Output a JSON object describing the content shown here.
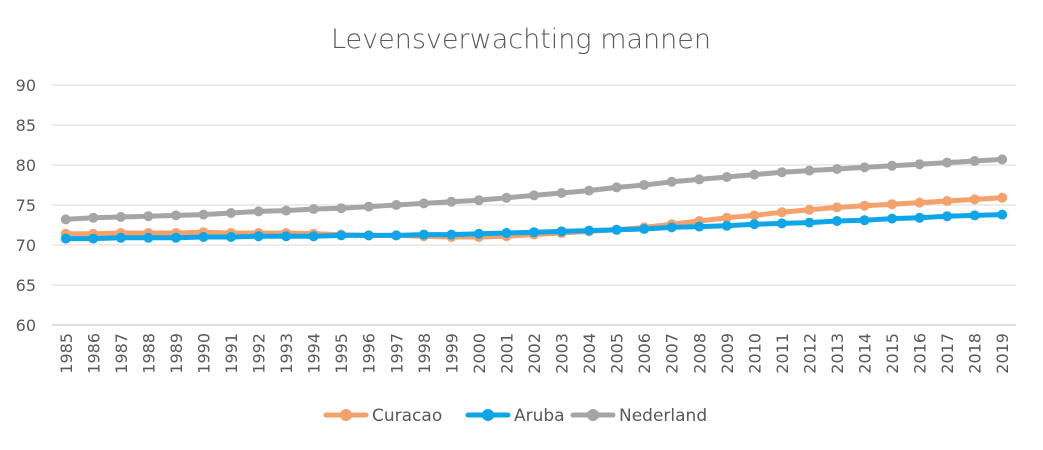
{
  "chart_data": {
    "type": "line",
    "title": "Levensverwachting mannen",
    "xlabel": "",
    "ylabel": "",
    "ylim": [
      60,
      90
    ],
    "yticks": [
      60,
      65,
      70,
      75,
      80,
      85,
      90
    ],
    "grid": true,
    "legend_position": "bottom",
    "categories": [
      "1985",
      "1986",
      "1987",
      "1988",
      "1989",
      "1990",
      "1991",
      "1992",
      "1993",
      "1994",
      "1995",
      "1996",
      "1997",
      "1998",
      "1999",
      "2000",
      "2001",
      "2002",
      "2003",
      "2004",
      "2005",
      "2006",
      "2007",
      "2008",
      "2009",
      "2010",
      "2011",
      "2012",
      "2013",
      "2014",
      "2015",
      "2016",
      "2017",
      "2018",
      "2019"
    ],
    "series": [
      {
        "name": "Curacao",
        "color": "#F4A16C",
        "values": [
          71.4,
          71.4,
          71.5,
          71.5,
          71.5,
          71.6,
          71.5,
          71.5,
          71.5,
          71.4,
          71.3,
          71.2,
          71.2,
          71.1,
          71.0,
          71.0,
          71.1,
          71.3,
          71.5,
          71.7,
          71.9,
          72.2,
          72.6,
          73.0,
          73.4,
          73.7,
          74.1,
          74.4,
          74.7,
          74.9,
          75.1,
          75.3,
          75.5,
          75.7,
          75.9
        ]
      },
      {
        "name": "Aruba",
        "color": "#0EA5E9",
        "values": [
          70.8,
          70.8,
          70.9,
          70.9,
          70.9,
          71.0,
          71.0,
          71.1,
          71.1,
          71.1,
          71.2,
          71.2,
          71.2,
          71.3,
          71.3,
          71.4,
          71.5,
          71.6,
          71.7,
          71.8,
          71.9,
          72.0,
          72.2,
          72.3,
          72.4,
          72.6,
          72.7,
          72.8,
          73.0,
          73.1,
          73.3,
          73.4,
          73.6,
          73.7,
          73.8
        ]
      },
      {
        "name": "Nederland",
        "color": "#A5A5A5",
        "values": [
          73.2,
          73.4,
          73.5,
          73.6,
          73.7,
          73.8,
          74.0,
          74.2,
          74.3,
          74.5,
          74.6,
          74.8,
          75.0,
          75.2,
          75.4,
          75.6,
          75.9,
          76.2,
          76.5,
          76.8,
          77.2,
          77.5,
          77.9,
          78.2,
          78.5,
          78.8,
          79.1,
          79.3,
          79.5,
          79.7,
          79.9,
          80.1,
          80.3,
          80.5,
          80.7
        ]
      }
    ]
  }
}
